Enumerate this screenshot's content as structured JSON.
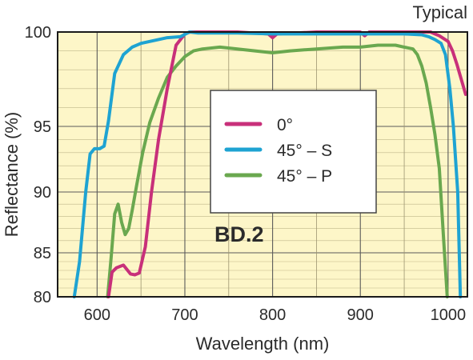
{
  "chart_data": {
    "type": "line",
    "title": "",
    "corner_note": "Typical",
    "annotation": "BD.2",
    "xlabel": "Wavelength (nm)",
    "ylabel": "Reflectance (%)",
    "xlim": [
      555,
      1022
    ],
    "ylim": [
      80,
      100
    ],
    "y_scale": "nonlinear (stretched toward 100%)",
    "x_ticks": [
      600,
      700,
      800,
      900,
      1000
    ],
    "x_tick_labels": [
      "600",
      "700",
      "800",
      "900",
      "1000"
    ],
    "y_ticks": [
      80,
      85,
      90,
      95,
      100
    ],
    "y_tick_labels": [
      "80",
      "85",
      "90",
      "95",
      "100"
    ],
    "grid": true,
    "legend_position": "center",
    "background_color": "#fdf6c8",
    "series": [
      {
        "name": "0°",
        "color": "#c8307a",
        "x": [
          613,
          617,
          622,
          630,
          638,
          643,
          648,
          655,
          662,
          670,
          680,
          690,
          700,
          706,
          720,
          760,
          795,
          800,
          805,
          850,
          900,
          905,
          910,
          950,
          980,
          985,
          990,
          1000,
          1005,
          1010,
          1015,
          1020
        ],
        "y": [
          80,
          82.8,
          83.3,
          83.6,
          82.6,
          82.5,
          82.7,
          85.5,
          90,
          94,
          97,
          99.3,
          99.9,
          100,
          100,
          100,
          99.9,
          99.7,
          99.9,
          100,
          100,
          99.8,
          100,
          100,
          100,
          99.9,
          99.8,
          99.5,
          99,
          98.3,
          97.5,
          96.7
        ]
      },
      {
        "name": "45° – S",
        "color": "#1ea3d2",
        "x": [
          574,
          580,
          587,
          592,
          597,
          603,
          608,
          613,
          620,
          630,
          640,
          650,
          660,
          670,
          680,
          695,
          705,
          715,
          760,
          800,
          850,
          900,
          950,
          970,
          978,
          985,
          992,
          997,
          1002,
          1006,
          1011,
          1014
        ],
        "y": [
          80,
          84,
          90,
          92.9,
          93.3,
          93.3,
          93.5,
          95.3,
          97.8,
          98.8,
          99.2,
          99.4,
          99.5,
          99.6,
          99.7,
          99.75,
          100,
          99.95,
          99.95,
          99.9,
          99.9,
          99.9,
          99.9,
          99.85,
          99.75,
          99.6,
          99.4,
          98.8,
          97,
          95,
          90,
          80
        ]
      },
      {
        "name": "45° – P",
        "color": "#6aa84f",
        "x": [
          612,
          616,
          620,
          624,
          628,
          632,
          636,
          640,
          645,
          652,
          660,
          670,
          680,
          690,
          700,
          710,
          720,
          740,
          760,
          780,
          800,
          820,
          850,
          880,
          900,
          920,
          940,
          950,
          960,
          965,
          970,
          975,
          980,
          985,
          990,
          995,
          999
        ],
        "y": [
          80,
          84.5,
          88.2,
          89,
          87.5,
          86.5,
          87,
          88.5,
          90.5,
          93,
          95.2,
          96.5,
          97.6,
          98.2,
          98.7,
          99,
          99.1,
          99.2,
          99.1,
          99,
          98.9,
          99,
          99.1,
          99.2,
          99.2,
          99.3,
          99.3,
          99.2,
          99.1,
          98.8,
          98.2,
          97.3,
          96,
          94.4,
          91.8,
          86,
          80
        ]
      }
    ]
  }
}
